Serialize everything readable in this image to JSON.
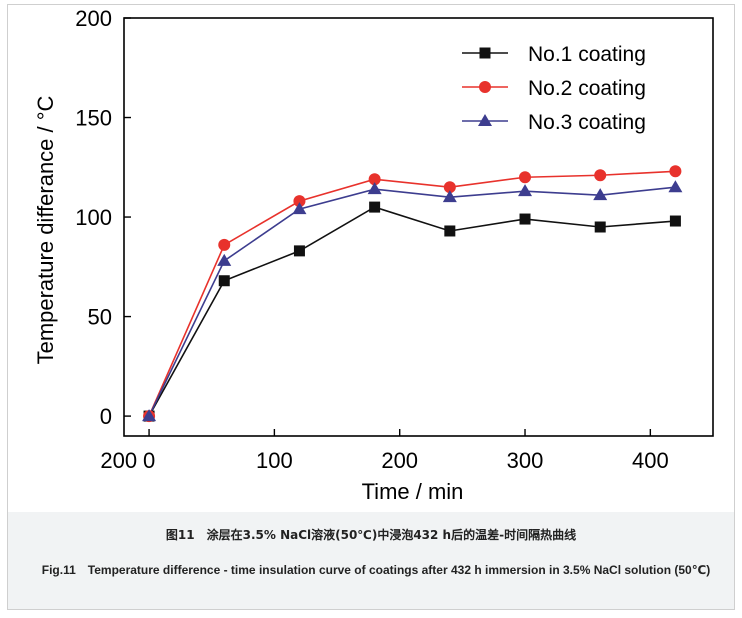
{
  "chart_data": {
    "type": "line",
    "x": [
      0,
      60,
      120,
      180,
      240,
      300,
      360,
      420
    ],
    "series": [
      {
        "name": "No.1 coating",
        "color": "#111111",
        "marker": "square",
        "values": [
          0,
          68,
          83,
          105,
          93,
          99,
          95,
          98
        ]
      },
      {
        "name": "No.2 coating",
        "color": "#e8322c",
        "marker": "circle",
        "values": [
          0,
          86,
          108,
          119,
          115,
          120,
          121,
          123
        ]
      },
      {
        "name": "No.3 coating",
        "color": "#3d3d8f",
        "marker": "triangle",
        "values": [
          0,
          78,
          104,
          114,
          110,
          113,
          111,
          115
        ]
      }
    ],
    "xlabel": "Time / min",
    "ylabel": "Temperature differance / °C",
    "xlim": [
      -20,
      450
    ],
    "ylim": [
      -10,
      200
    ],
    "xticks": [
      0,
      100,
      200,
      300,
      400
    ],
    "xtick_labels": [
      "0",
      "100",
      "200",
      "300",
      "400"
    ],
    "extra_xtick_label": "200",
    "yticks": [
      0,
      50,
      100,
      150,
      200
    ],
    "ytick_labels": [
      "0",
      "50",
      "100",
      "150",
      "200"
    ],
    "legend_position": "top-right"
  },
  "caption": {
    "chinese": "图11　涂层在3.5% NaCl溶液(50℃)中浸泡432 h后的温差-时间隔热曲线",
    "english": "Fig.11　Temperature difference - time insulation curve of coatings after 432 h immersion in 3.5% NaCl solution (50℃)"
  }
}
